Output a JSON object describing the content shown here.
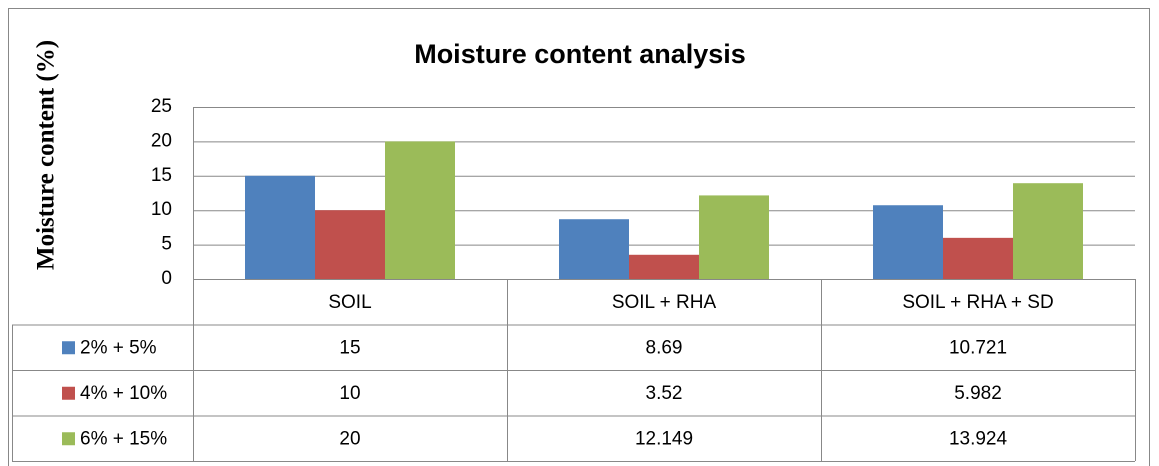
{
  "chart_data": {
    "type": "bar",
    "title": "Moisture content analysis",
    "y_label": "Moisture content (%)",
    "categories": [
      "SOIL",
      "SOIL + RHA",
      "SOIL + RHA + SD"
    ],
    "series": [
      {
        "name": "2% + 5%",
        "color": "#4f81bd",
        "values": [
          15,
          8.69,
          10.721
        ]
      },
      {
        "name": "4% + 10%",
        "color": "#c0504d",
        "values": [
          10,
          3.52,
          5.982
        ]
      },
      {
        "name": "6% + 15%",
        "color": "#9bbb59",
        "values": [
          20,
          12.149,
          13.924
        ]
      }
    ],
    "ylim": [
      0,
      25
    ],
    "yticks": [
      0,
      5,
      10,
      15,
      20,
      25
    ],
    "grid": true,
    "data_table": true
  }
}
